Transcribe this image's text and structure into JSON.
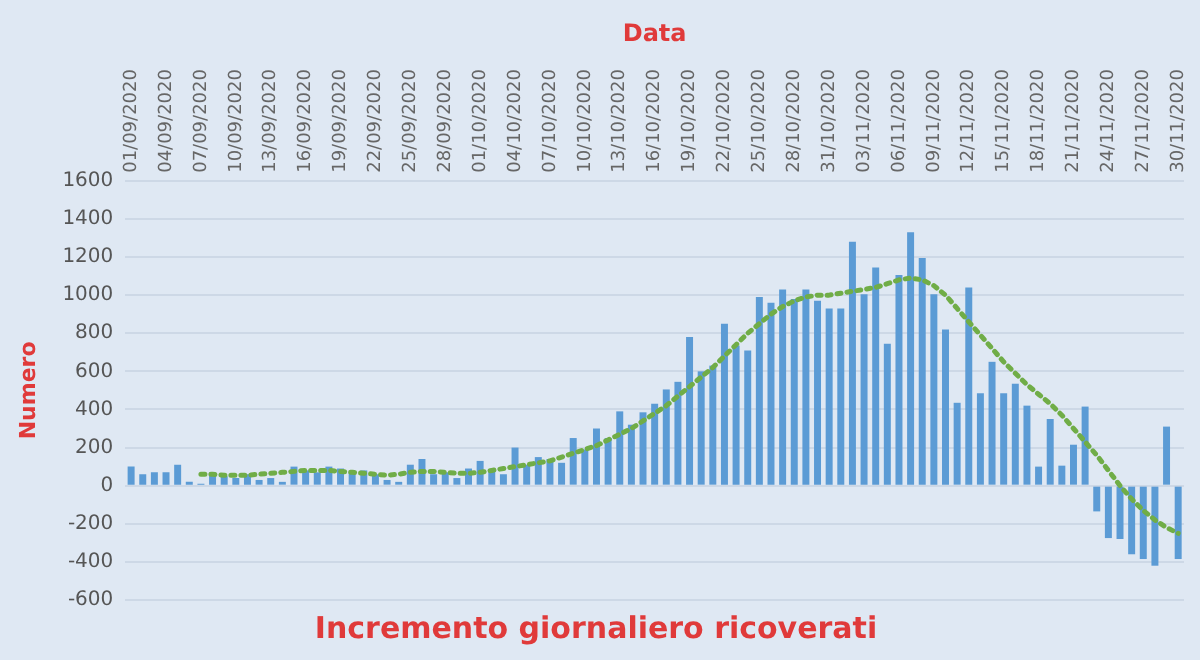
{
  "chart_data": {
    "type": "bar",
    "title": "Incremento giornaliero ricoverati",
    "xlabel": "Data",
    "ylabel": "Numero",
    "categories": [
      "01/09/2020",
      null,
      null,
      "04/09/2020",
      null,
      null,
      "07/09/2020",
      null,
      null,
      "10/09/2020",
      null,
      null,
      "13/09/2020",
      null,
      null,
      "16/09/2020",
      null,
      null,
      "19/09/2020",
      null,
      null,
      "22/09/2020",
      null,
      null,
      "25/09/2020",
      null,
      null,
      "28/09/2020",
      null,
      null,
      "01/10/2020",
      null,
      null,
      "04/10/2020",
      null,
      null,
      "07/10/2020",
      null,
      null,
      "10/10/2020",
      null,
      null,
      "13/10/2020",
      null,
      null,
      "16/10/2020",
      null,
      null,
      "19/10/2020",
      null,
      null,
      "22/10/2020",
      null,
      null,
      "25/10/2020",
      null,
      null,
      "28/10/2020",
      null,
      null,
      "31/10/2020",
      null,
      null,
      "03/11/2020",
      null,
      null,
      "06/11/2020",
      null,
      null,
      "09/11/2020",
      null,
      null,
      "12/11/2020",
      null,
      null,
      "15/11/2020",
      null,
      null,
      "18/11/2020",
      null,
      null,
      "21/11/2020",
      null,
      null,
      "24/11/2020",
      null,
      null,
      "27/11/2020",
      null,
      null,
      "30/11/2020"
    ],
    "series": [
      {
        "color": "#5b9bd5",
        "values": [
          100,
          60,
          70,
          70,
          110,
          20,
          10,
          70,
          50,
          40,
          60,
          30,
          40,
          20,
          100,
          80,
          70,
          100,
          90,
          70,
          80,
          60,
          30,
          20,
          110,
          140,
          60,
          70,
          40,
          90,
          130,
          80,
          60,
          200,
          110,
          150,
          140,
          120,
          250,
          190,
          300,
          250,
          390,
          320,
          385,
          430,
          505,
          545,
          780,
          600,
          630,
          850,
          735,
          710,
          990,
          960,
          1030,
          980,
          1030,
          970,
          930,
          930,
          1280,
          1005,
          1145,
          745,
          1105,
          1330,
          1195,
          1005,
          820,
          435,
          1040,
          485,
          650,
          485,
          535,
          420,
          100,
          350,
          105,
          215,
          415,
          -135,
          -275,
          -280,
          -360,
          -385,
          -420,
          310,
          -385
        ]
      },
      {
        "type": "line",
        "color": "#70ad47",
        "line_style": "dotted",
        "values": [
          null,
          null,
          null,
          null,
          null,
          null,
          60,
          60,
          55,
          55,
          55,
          60,
          65,
          70,
          75,
          80,
          80,
          80,
          75,
          70,
          65,
          60,
          55,
          60,
          70,
          75,
          75,
          70,
          65,
          65,
          70,
          80,
          90,
          100,
          110,
          120,
          130,
          150,
          170,
          190,
          210,
          240,
          270,
          300,
          340,
          380,
          420,
          470,
          520,
          570,
          620,
          680,
          740,
          800,
          850,
          900,
          940,
          970,
          990,
          1000,
          1000,
          1010,
          1020,
          1030,
          1040,
          1060,
          1080,
          1090,
          1080,
          1050,
          1000,
          930,
          860,
          790,
          720,
          650,
          590,
          530,
          480,
          430,
          370,
          300,
          230,
          160,
          80,
          0,
          -70,
          -130,
          -180,
          -220,
          -250
        ]
      }
    ],
    "ylim": [
      -600,
      1600
    ],
    "yticks": [
      -600,
      -400,
      -200,
      0,
      200,
      400,
      600,
      800,
      1000,
      1200,
      1400,
      1600
    ],
    "grid": "y"
  }
}
